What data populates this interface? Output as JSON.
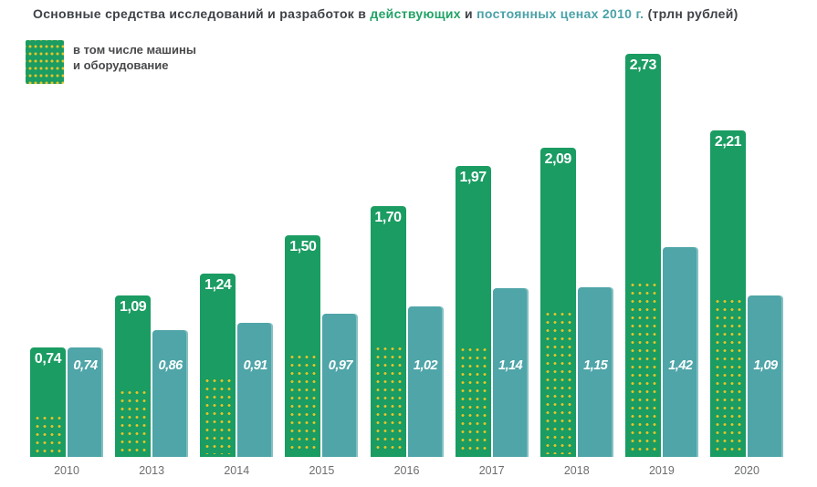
{
  "title": {
    "full_text": "Основные средства исследований и разработок в действующих и постоянных ценах 2010 г. (трлн рублей)",
    "parts": [
      {
        "text": "Основные средства исследований и разработок в ",
        "color": "#3e4247"
      },
      {
        "text": "действующих",
        "color": "#21a365"
      },
      {
        "text": " и ",
        "color": "#3e4247"
      },
      {
        "text": "постоянных ценах 2010 г.",
        "color": "#4aa2a8"
      },
      {
        "text": " (трлн рублей)",
        "color": "#3e4247"
      }
    ]
  },
  "legend": {
    "label": "в том числе машины\nи оборудование",
    "swatch_pattern": "yellow-dots-on-green"
  },
  "chart_data": {
    "type": "bar",
    "title": "Основные средства исследований и разработок в действующих и постоянных ценах 2010 г. (трлн рублей)",
    "unit": "трлн рублей",
    "categories": [
      "2010",
      "2013",
      "2014",
      "2015",
      "2016",
      "2017",
      "2018",
      "2019",
      "2020"
    ],
    "series": [
      {
        "name": "в действующих ценах",
        "color": "#1a9c62",
        "values": [
          0.74,
          1.09,
          1.24,
          1.5,
          1.7,
          1.97,
          2.09,
          2.73,
          2.21
        ],
        "labels": [
          "0,74",
          "1,09",
          "1,24",
          "1,50",
          "1,70",
          "1,97",
          "2,09",
          "2,73",
          "2,21"
        ]
      },
      {
        "name": "в постоянных ценах 2010 г.",
        "color": "#4fa5a8",
        "values": [
          0.74,
          0.86,
          0.91,
          0.97,
          1.02,
          1.14,
          1.15,
          1.42,
          1.09
        ],
        "labels": [
          "0,74",
          "0,86",
          "0,91",
          "0,97",
          "1,02",
          "1,14",
          "1,15",
          "1,42",
          "1,09"
        ]
      },
      {
        "name": "в том числе машины и оборудование",
        "pattern": "yellow-dots-on-green",
        "values_estimated_from_pattern": [
          0.31,
          0.48,
          0.56,
          0.72,
          0.78,
          0.77,
          1.01,
          1.21,
          1.1
        ]
      }
    ],
    "ylim": [
      0,
      2.8
    ],
    "grid": false,
    "axes_hidden": true,
    "legend_position": "top-left",
    "value_label_style": "current: bold white inside bar top; constant: bold italic white inside bar"
  },
  "colors": {
    "bar_current": "#1a9c62",
    "bar_constant": "#4fa5a8",
    "dot_yellow": "#e9c328",
    "title_text": "#3e4247",
    "title_highlight_current": "#21a365",
    "title_highlight_constant": "#4aa2a8",
    "year_label": "#6d6e71",
    "legend_text": "#48494b",
    "background": "#ffffff"
  }
}
